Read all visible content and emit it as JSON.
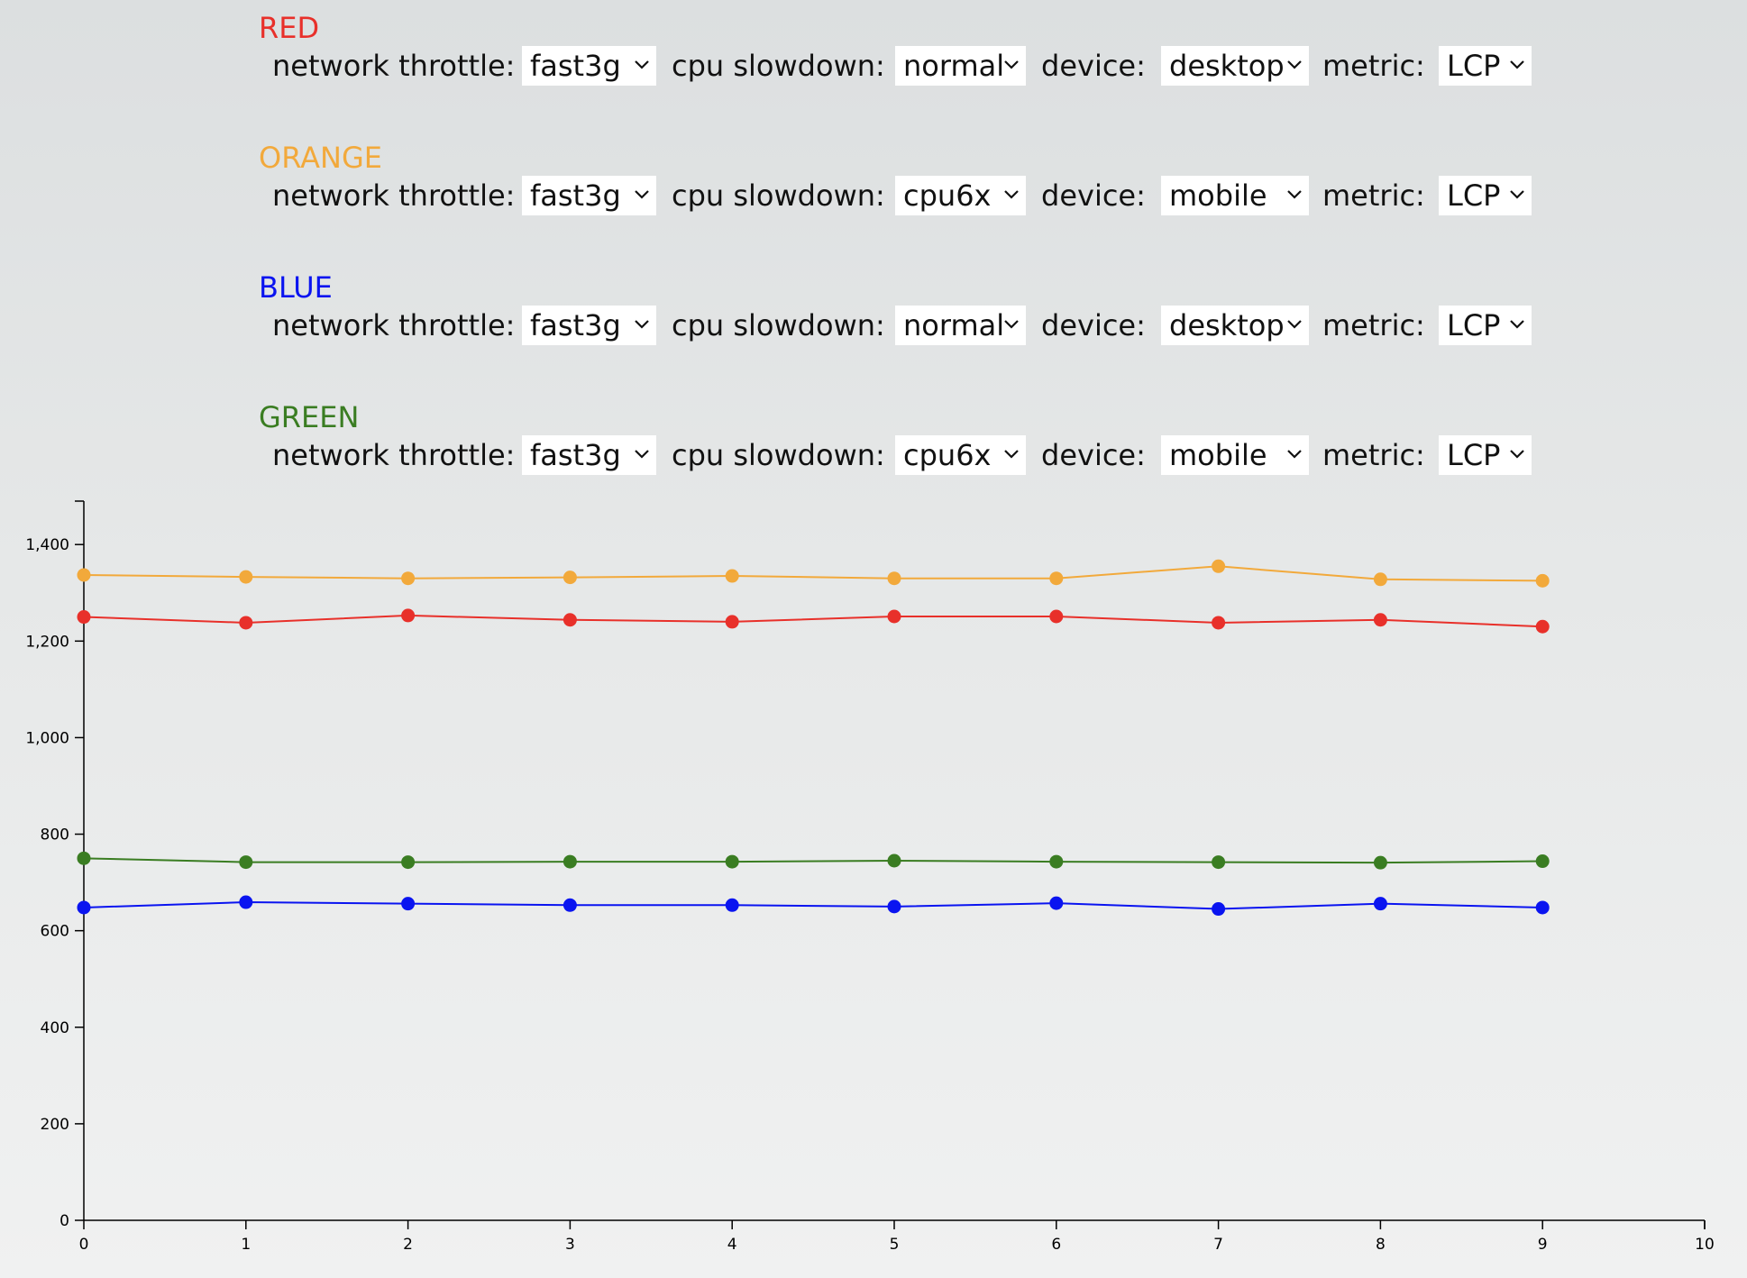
{
  "configs": [
    {
      "name": "RED",
      "color": "#e8302a",
      "network_label": "network throttle:",
      "network": "fast3g",
      "cpu_label": "cpu slowdown:",
      "cpu": "normal",
      "device_label": "device:",
      "device": "desktop",
      "metric_label": "metric:",
      "metric": "LCP"
    },
    {
      "name": "ORANGE",
      "color": "#f2a93b",
      "network_label": "network throttle:",
      "network": "fast3g",
      "cpu_label": "cpu slowdown:",
      "cpu": "cpu6x",
      "device_label": "device:",
      "device": "mobile",
      "metric_label": "metric:",
      "metric": "LCP"
    },
    {
      "name": "BLUE",
      "color": "#0a14f0",
      "network_label": "network throttle:",
      "network": "fast3g",
      "cpu_label": "cpu slowdown:",
      "cpu": "normal",
      "device_label": "device:",
      "device": "desktop",
      "metric_label": "metric:",
      "metric": "LCP"
    },
    {
      "name": "GREEN",
      "color": "#3a7d22",
      "network_label": "network throttle:",
      "network": "fast3g",
      "cpu_label": "cpu slowdown:",
      "cpu": "cpu6x",
      "device_label": "device:",
      "device": "mobile",
      "metric_label": "metric:",
      "metric": "LCP"
    }
  ],
  "chart_data": {
    "type": "line",
    "title": "",
    "xlabel": "",
    "ylabel": "",
    "x": [
      0,
      1,
      2,
      3,
      4,
      5,
      6,
      7,
      8,
      9
    ],
    "xlim": [
      0,
      10
    ],
    "ylim": [
      0,
      1490
    ],
    "x_ticks": [
      0,
      1,
      2,
      3,
      4,
      5,
      6,
      7,
      8,
      9,
      10
    ],
    "y_ticks": [
      0,
      200,
      400,
      600,
      800,
      1000,
      1200,
      1400
    ],
    "y_tick_labels": [
      "0",
      "200",
      "400",
      "600",
      "800",
      "1,000",
      "1,200",
      "1,400"
    ],
    "grid": false,
    "series": [
      {
        "color": "#f2a93b",
        "values": [
          1337,
          1333,
          1330,
          1332,
          1335,
          1330,
          1330,
          1355,
          1328,
          1325
        ]
      },
      {
        "color": "#e8302a",
        "values": [
          1250,
          1238,
          1253,
          1244,
          1240,
          1251,
          1251,
          1238,
          1244,
          1230
        ]
      },
      {
        "color": "#3a7d22",
        "values": [
          750,
          742,
          742,
          743,
          743,
          745,
          743,
          742,
          741,
          744
        ]
      },
      {
        "color": "#0a14f0",
        "values": [
          648,
          659,
          656,
          653,
          653,
          650,
          657,
          645,
          656,
          648
        ]
      }
    ]
  }
}
